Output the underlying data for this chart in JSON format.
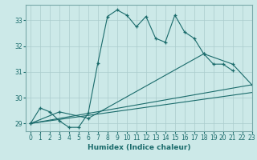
{
  "xlabel": "Humidex (Indice chaleur)",
  "background_color": "#cce9e8",
  "grid_color": "#aacccc",
  "line_color": "#1a6b6b",
  "xlim": [
    -0.5,
    23
  ],
  "ylim": [
    28.7,
    33.6
  ],
  "yticks": [
    29,
    30,
    31,
    32,
    33
  ],
  "xticks": [
    0,
    1,
    2,
    3,
    4,
    5,
    6,
    7,
    8,
    9,
    10,
    11,
    12,
    13,
    14,
    15,
    16,
    17,
    18,
    19,
    20,
    21,
    22,
    23
  ],
  "curve1_x": [
    0,
    1,
    2,
    3,
    4,
    5,
    6,
    7,
    8,
    9,
    10,
    11,
    12,
    13,
    14,
    15,
    16,
    17,
    18,
    19,
    20,
    21
  ],
  "curve1_y": [
    29.0,
    29.6,
    29.45,
    29.1,
    28.85,
    28.85,
    29.4,
    31.35,
    33.15,
    33.4,
    33.2,
    32.75,
    33.15,
    32.3,
    32.15,
    33.2,
    32.55,
    32.3,
    31.7,
    31.3,
    31.3,
    31.05
  ],
  "curve2_x": [
    0,
    3,
    6,
    18,
    21,
    23
  ],
  "curve2_y": [
    29.0,
    29.45,
    29.2,
    31.7,
    31.3,
    30.5
  ],
  "curve3_x": [
    0,
    23
  ],
  "curve3_y": [
    29.0,
    30.5
  ],
  "curve4_x": [
    0,
    23
  ],
  "curve4_y": [
    29.0,
    30.2
  ]
}
